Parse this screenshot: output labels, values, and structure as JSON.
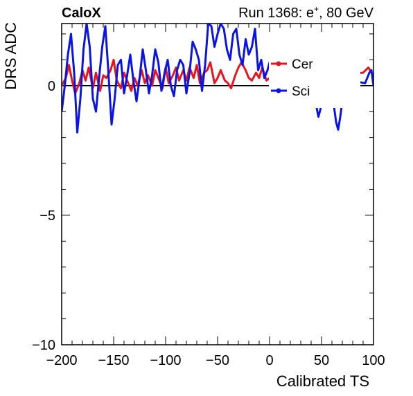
{
  "chart_data": {
    "type": "line",
    "title_left": "CaloX",
    "title_right": "Run 1368: e",
    "title_right_sup": "+",
    "title_right_tail": ", 80 GeV",
    "xlabel": "Calibrated TS",
    "ylabel": "DRS ADC",
    "xlim": [
      -200,
      100
    ],
    "ylim": [
      -10,
      2.4
    ],
    "x_ticks": [
      -200,
      -150,
      -100,
      -50,
      0,
      50,
      100
    ],
    "x_tick_labels": [
      "−200",
      "−150",
      "−100",
      "−50",
      "0",
      "50",
      "100"
    ],
    "y_ticks": [
      -10,
      -5,
      0
    ],
    "y_tick_labels": [
      "−10",
      "−5",
      "0"
    ],
    "reference_line": 0,
    "legend": {
      "placement": "top-right",
      "entries": [
        "Cer",
        "Sci"
      ]
    },
    "series": [
      {
        "name": "Cer",
        "color": "#e8141c",
        "x": [
          -200,
          -196,
          -193,
          -190,
          -187,
          -183,
          -180,
          -177,
          -174,
          -170,
          -167,
          -163,
          -160,
          -157,
          -153,
          -150,
          -147,
          -143,
          -140,
          -137,
          -133,
          -130,
          -127,
          -123,
          -120,
          -117,
          -113,
          -110,
          -107,
          -103,
          -100,
          -97,
          -93,
          -90,
          -87,
          -83,
          -80,
          -77,
          -73,
          -70,
          -67,
          -63,
          -60,
          -57,
          -53,
          -50,
          -47,
          -43,
          -40,
          -37,
          -33,
          -30,
          -27,
          -23,
          -20,
          -17,
          -13,
          -10,
          -7,
          -3,
          0,
          90,
          95,
          100
        ],
        "y": [
          0.0,
          0.3,
          0.8,
          0.2,
          -0.3,
          0.1,
          0.6,
          0.2,
          0.7,
          -0.1,
          0.5,
          -0.2,
          0.4,
          0.3,
          0.6,
          1.0,
          0.2,
          -0.1,
          0.5,
          0.2,
          -0.2,
          0.3,
          0.0,
          0.6,
          0.1,
          0.4,
          0.0,
          0.6,
          0.3,
          -0.1,
          0.7,
          0.1,
          0.4,
          0.7,
          0.2,
          0.6,
          0.2,
          0.7,
          0.3,
          0.8,
          0.1,
          0.5,
          0.6,
          0.9,
          0.1,
          0.3,
          0.6,
          0.2,
          0.1,
          -0.1,
          0.4,
          0.7,
          0.9,
          0.6,
          0.3,
          0.2,
          0.5,
          0.3,
          0.7,
          0.2,
          0.3,
          0.5,
          0.7,
          0.4
        ]
      },
      {
        "name": "Sci",
        "color": "#0a14e6",
        "x": [
          -200,
          -197,
          -194,
          -191,
          -188,
          -185,
          -182,
          -179,
          -176,
          -173,
          -170,
          -167,
          -164,
          -161,
          -158,
          -155,
          -152,
          -149,
          -146,
          -143,
          -140,
          -137,
          -134,
          -131,
          -128,
          -125,
          -122,
          -119,
          -116,
          -113,
          -110,
          -107,
          -104,
          -101,
          -98,
          -95,
          -92,
          -89,
          -86,
          -83,
          -80,
          -77,
          -74,
          -71,
          -68,
          -65,
          -62,
          -59,
          -56,
          -53,
          -50,
          -47,
          -44,
          -41,
          -38,
          -35,
          -32,
          -29,
          -26,
          -23,
          -20,
          -17,
          -14,
          -11,
          -8,
          -5,
          -2,
          0,
          43,
          45,
          47,
          49,
          51,
          53,
          60,
          62,
          64,
          66,
          68,
          70,
          72,
          74,
          77,
          92,
          94,
          96,
          98,
          100
        ],
        "y": [
          -1.0,
          0.0,
          1.2,
          2.0,
          0.5,
          -1.8,
          -0.5,
          1.4,
          2.4,
          1.5,
          -0.5,
          -1.0,
          0.3,
          1.5,
          2.3,
          0.5,
          -1.5,
          -0.5,
          0.8,
          1.0,
          -0.3,
          0.4,
          1.2,
          0.2,
          -0.6,
          0.3,
          1.4,
          0.6,
          -0.3,
          0.4,
          1.4,
          0.9,
          -0.2,
          0.5,
          1.0,
          0.0,
          -0.4,
          0.6,
          1.0,
          0.8,
          -0.3,
          0.5,
          1.7,
          1.4,
          1.0,
          -0.2,
          0.8,
          2.4,
          2.3,
          1.5,
          2.0,
          2.4,
          2.2,
          1.4,
          1.0,
          2.0,
          2.2,
          1.2,
          0.8,
          1.8,
          1.2,
          1.5,
          2.2,
          0.6,
          1.0,
          0.3,
          0.6,
          0.9,
          -0.4,
          -0.8,
          -1.2,
          -0.9,
          -0.3,
          -0.1,
          -0.1,
          -0.8,
          -1.4,
          -1.7,
          -1.2,
          -0.6,
          -0.1,
          0.3,
          0.2,
          0.1,
          0.3,
          0.5,
          0.6,
          0.0
        ]
      }
    ]
  }
}
